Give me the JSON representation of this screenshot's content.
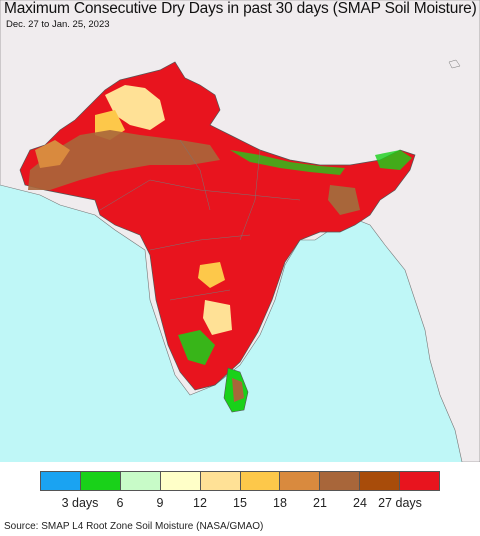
{
  "title": "Maximum Consecutive Dry Days in past 30 days (SMAP Soil Moisture)",
  "date_range": "Dec. 27 to Jan. 25, 2023",
  "source": "Source: SMAP L4 Root Zone Soil Moisture (NASA/GMAO)",
  "legend": {
    "colors": [
      "#1aa3f2",
      "#19d119",
      "#c8fbc8",
      "#ffffc8",
      "#ffe196",
      "#fdc84a",
      "#d98a3e",
      "#a8663a",
      "#a84c0a",
      "#e8141e"
    ],
    "ticks": [
      {
        "label": "3 days"
      },
      {
        "label": "6"
      },
      {
        "label": "9"
      },
      {
        "label": "12"
      },
      {
        "label": "15"
      },
      {
        "label": "18"
      },
      {
        "label": "21"
      },
      {
        "label": "24"
      },
      {
        "label": "27 days"
      }
    ]
  },
  "map": {
    "ocean_color": "#bff7f7",
    "outside_land_color": "#f0ecee",
    "dominant_color": "#e8141e"
  }
}
